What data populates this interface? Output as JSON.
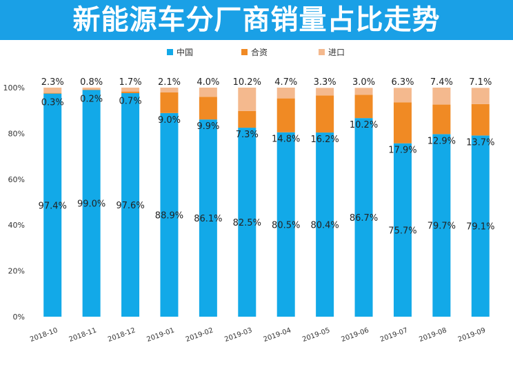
{
  "chart_data": {
    "type": "bar",
    "stacked": true,
    "title": "新能源车分厂商销量占比走势",
    "xlabel": "",
    "ylabel": "",
    "ylim": [
      0,
      100
    ],
    "yticks": [
      "0%",
      "20%",
      "40%",
      "60%",
      "80%",
      "100%"
    ],
    "legend_position": "top",
    "categories": [
      "2018-10",
      "2018-11",
      "2018-12",
      "2019-01",
      "2019-02",
      "2019-03",
      "2019-04",
      "2019-05",
      "2019-06",
      "2019-07",
      "2019-08",
      "2019-09"
    ],
    "series": [
      {
        "name": "中国",
        "color": "#12a9e8",
        "values": [
          97.4,
          99.0,
          97.6,
          88.9,
          86.1,
          82.5,
          80.5,
          80.4,
          86.7,
          75.7,
          79.7,
          79.1
        ],
        "labels": [
          "97.4%",
          "99.0%",
          "97.6%",
          "88.9%",
          "86.1%",
          "82.5%",
          "80.5%",
          "80.4%",
          "86.7%",
          "75.7%",
          "79.7%",
          "79.1%"
        ]
      },
      {
        "name": "合资",
        "color": "#f08a24",
        "values": [
          0.3,
          0.2,
          0.7,
          9.0,
          9.9,
          7.3,
          14.8,
          16.2,
          10.2,
          17.9,
          12.9,
          13.7
        ],
        "labels": [
          "0.3%",
          "0.2%",
          "0.7%",
          "9.0%",
          "9.9%",
          "7.3%",
          "14.8%",
          "16.2%",
          "10.2%",
          "17.9%",
          "12.9%",
          "13.7%"
        ]
      },
      {
        "name": "进口",
        "color": "#f4b98e",
        "values": [
          2.3,
          0.8,
          1.7,
          2.1,
          4.0,
          10.2,
          4.7,
          3.3,
          3.0,
          6.3,
          7.4,
          7.1
        ],
        "labels": [
          "2.3%",
          "0.8%",
          "1.7%",
          "2.1%",
          "4.0%",
          "10.2%",
          "4.7%",
          "3.3%",
          "3.0%",
          "6.3%",
          "7.4%",
          "7.1%"
        ]
      }
    ]
  }
}
